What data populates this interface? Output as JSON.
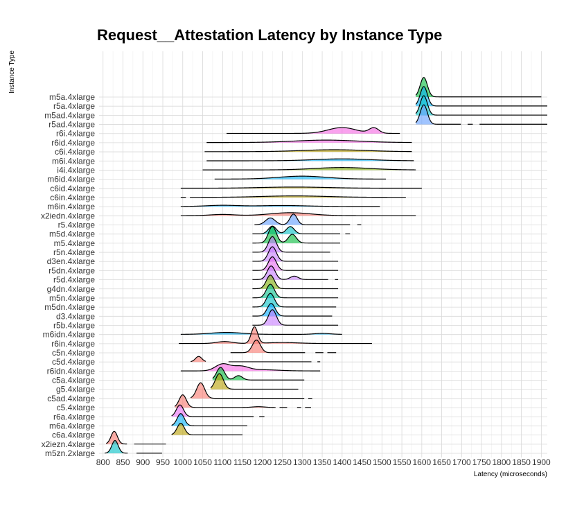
{
  "chart_data": {
    "type": "ridgeline",
    "title": "Request__Attestation Latency by Instance Type",
    "xlabel": "Latency (microseconds)",
    "ylabel": "Instance Type",
    "xlim": [
      790,
      1915
    ],
    "xticks": [
      800,
      850,
      900,
      950,
      1000,
      1050,
      1100,
      1150,
      1200,
      1250,
      1300,
      1350,
      1400,
      1450,
      1500,
      1550,
      1600,
      1650,
      1700,
      1750,
      1800,
      1850,
      1900
    ],
    "grid": true,
    "categories": [
      "m5zn.2xlarge",
      "x2iezn.4xlarge",
      "c6a.4xlarge",
      "m6a.4xlarge",
      "r6a.4xlarge",
      "c5.4xlarge",
      "c5ad.4xlarge",
      "g5.4xlarge",
      "c5a.4xlarge",
      "r6idn.4xlarge",
      "c5d.4xlarge",
      "c5n.4xlarge",
      "r6in.4xlarge",
      "m6idn.4xlarge",
      "r5b.4xlarge",
      "d3.4xlarge",
      "m5dn.4xlarge",
      "m5n.4xlarge",
      "g4dn.4xlarge",
      "r5d.4xlarge",
      "r5dn.4xlarge",
      "d3en.4xlarge",
      "r5n.4xlarge",
      "m5.4xlarge",
      "m5d.4xlarge",
      "r5.4xlarge",
      "x2iedn.4xlarge",
      "m6in.4xlarge",
      "c6in.4xlarge",
      "c6id.4xlarge",
      "m6id.4xlarge",
      "i4i.4xlarge",
      "m6i.4xlarge",
      "c6i.4xlarge",
      "r6id.4xlarge",
      "r6i.4xlarge",
      "r5ad.4xlarge",
      "m5ad.4xlarge",
      "r5a.4xlarge",
      "m5a.4xlarge"
    ],
    "series": [
      {
        "name": "m5zn.2xlarge",
        "color": "#00BFC4",
        "range": [
          804,
          948
        ],
        "peaks": [
          [
            830,
            1.3,
            8
          ]
        ],
        "gaps": [
          [
            862,
            884
          ]
        ]
      },
      {
        "name": "x2iezn.4xlarge",
        "color": "#F8766D",
        "range": [
          808,
          958
        ],
        "peaks": [
          [
            828,
            1.3,
            8
          ]
        ],
        "gaps": [
          [
            860,
            878
          ]
        ]
      },
      {
        "name": "c6a.4xlarge",
        "color": "#B79F00",
        "range": [
          972,
          1150
        ],
        "peaks": [
          [
            995,
            1.2,
            9
          ]
        ]
      },
      {
        "name": "m6a.4xlarge",
        "color": "#00B0F6",
        "range": [
          972,
          1162
        ],
        "peaks": [
          [
            995,
            1.25,
            9
          ]
        ]
      },
      {
        "name": "r6a.4xlarge",
        "color": "#E76BF3",
        "range": [
          972,
          1205
        ],
        "peaks": [
          [
            993,
            1.2,
            9
          ]
        ],
        "gaps": [
          [
            1178,
            1192
          ]
        ]
      },
      {
        "name": "c5.4xlarge",
        "color": "#F8766D",
        "range": [
          980,
          1322
        ],
        "peaks": [
          [
            1000,
            1.3,
            9
          ],
          [
            1190,
            0.08,
            15
          ]
        ],
        "gaps": [
          [
            1233,
            1243
          ],
          [
            1262,
            1287
          ],
          [
            1297,
            1307
          ]
        ]
      },
      {
        "name": "c5ad.4xlarge",
        "color": "#F8766D",
        "range": [
          1020,
          1325
        ],
        "peaks": [
          [
            1045,
            1.6,
            10
          ]
        ],
        "gaps": [
          [
            1305,
            1315
          ]
        ]
      },
      {
        "name": "g5.4xlarge",
        "color": "#B79F00",
        "range": [
          1070,
          1290
        ],
        "peaks": [
          [
            1092,
            1.6,
            10
          ]
        ]
      },
      {
        "name": "c5a.4xlarge",
        "color": "#00BA38",
        "range": [
          1075,
          1305
        ],
        "peaks": [
          [
            1095,
            1.3,
            10
          ],
          [
            1140,
            0.45,
            10
          ]
        ]
      },
      {
        "name": "r6idn.4xlarge",
        "color": "#F564E3",
        "range": [
          995,
          1345
        ],
        "peaks": [
          [
            1100,
            0.7,
            18
          ],
          [
            1145,
            0.45,
            20
          ],
          [
            1200,
            0.12,
            40
          ]
        ]
      },
      {
        "name": "c5d.4xlarge",
        "color": "#F8766D",
        "range": [
          1020,
          1345
        ],
        "peaks": [
          [
            1040,
            0.55,
            8
          ]
        ],
        "gaps": [
          [
            1058,
            1115
          ],
          [
            1323,
            1338
          ]
        ]
      },
      {
        "name": "c5n.4xlarge",
        "color": "#F8766D",
        "range": [
          1120,
          1385
        ],
        "peaks": [
          [
            1185,
            1.3,
            10
          ]
        ],
        "gaps": [
          [
            1307,
            1333
          ],
          [
            1353,
            1363
          ]
        ]
      },
      {
        "name": "r6in.4xlarge",
        "color": "#F8766D",
        "range": [
          990,
          1475
        ],
        "peaks": [
          [
            1180,
            1.7,
            8
          ],
          [
            1105,
            0.2,
            20
          ],
          [
            1250,
            0.1,
            40
          ]
        ]
      },
      {
        "name": "m6idn.4xlarge",
        "color": "#00B0F6",
        "range": [
          995,
          1400
        ],
        "peaks": [
          [
            1110,
            0.2,
            40
          ],
          [
            1350,
            0.1,
            20
          ]
        ]
      },
      {
        "name": "r5b.4xlarge",
        "color": "#C77CFF",
        "range": [
          1175,
          1390
        ],
        "peaks": [
          [
            1225,
            1.6,
            10
          ]
        ]
      },
      {
        "name": "d3.4xlarge",
        "color": "#00A9FF",
        "range": [
          1175,
          1375
        ],
        "peaks": [
          [
            1222,
            1.3,
            10
          ]
        ]
      },
      {
        "name": "m5dn.4xlarge",
        "color": "#00BFC4",
        "range": [
          1175,
          1385
        ],
        "peaks": [
          [
            1220,
            1.4,
            10
          ]
        ]
      },
      {
        "name": "m5n.4xlarge",
        "color": "#00C08B",
        "range": [
          1175,
          1390
        ],
        "peaks": [
          [
            1220,
            1.4,
            10
          ]
        ]
      },
      {
        "name": "g4dn.4xlarge",
        "color": "#7CAE00",
        "range": [
          1175,
          1390
        ],
        "peaks": [
          [
            1220,
            1.4,
            10
          ]
        ]
      },
      {
        "name": "r5d.4xlarge",
        "color": "#C77CFF",
        "range": [
          1175,
          1390
        ],
        "peaks": [
          [
            1222,
            1.4,
            10
          ],
          [
            1280,
            0.35,
            10
          ]
        ],
        "gaps": [
          [
            1365,
            1382
          ]
        ]
      },
      {
        "name": "r5dn.4xlarge",
        "color": "#E76BF3",
        "range": [
          1175,
          1390
        ],
        "peaks": [
          [
            1225,
            1.4,
            10
          ]
        ]
      },
      {
        "name": "d3en.4xlarge",
        "color": "#C77CFF",
        "range": [
          1175,
          1390
        ],
        "peaks": [
          [
            1225,
            1.5,
            10
          ]
        ]
      },
      {
        "name": "r5n.4xlarge",
        "color": "#C77CFF",
        "range": [
          1175,
          1370
        ],
        "peaks": [
          [
            1225,
            1.6,
            10
          ]
        ]
      },
      {
        "name": "m5.4xlarge",
        "color": "#00BA38",
        "range": [
          1175,
          1395
        ],
        "peaks": [
          [
            1225,
            1.7,
            10
          ],
          [
            1275,
            0.9,
            10
          ]
        ]
      },
      {
        "name": "m5d.4xlarge",
        "color": "#00BFC4",
        "range": [
          1175,
          1420
        ],
        "peaks": [
          [
            1225,
            0.8,
            10
          ],
          [
            1270,
            0.75,
            10
          ]
        ],
        "gaps": [
          [
            1395,
            1408
          ]
        ]
      },
      {
        "name": "r5.4xlarge",
        "color": "#619CFF",
        "range": [
          1180,
          1448
        ],
        "peaks": [
          [
            1220,
            0.7,
            12
          ],
          [
            1278,
            1.1,
            9
          ]
        ],
        "gaps": [
          [
            1420,
            1438
          ]
        ]
      },
      {
        "name": "x2iedn.4xlarge",
        "color": "#F8766D",
        "range": [
          995,
          1585
        ],
        "peaks": [
          [
            1100,
            0.12,
            30
          ],
          [
            1270,
            0.3,
            50
          ]
        ]
      },
      {
        "name": "m6in.4xlarge",
        "color": "#00A9FF",
        "range": [
          995,
          1495
        ],
        "peaks": [
          [
            1100,
            0.12,
            40
          ],
          [
            1250,
            0.1,
            60
          ]
        ]
      },
      {
        "name": "c6in.4xlarge",
        "color": "#B79F00",
        "range": [
          995,
          1560
        ],
        "peaks": [
          [
            1280,
            0.15,
            80
          ]
        ],
        "gaps": [
          [
            1008,
            1018
          ]
        ]
      },
      {
        "name": "c6id.4xlarge",
        "color": "#B79F00",
        "range": [
          995,
          1600
        ],
        "peaks": [
          [
            1280,
            0.12,
            80
          ]
        ]
      },
      {
        "name": "m6id.4xlarge",
        "color": "#00B0F6",
        "range": [
          1080,
          1510
        ],
        "peaks": [
          [
            1300,
            0.3,
            60
          ]
        ]
      },
      {
        "name": "i4i.4xlarge",
        "color": "#7CAE00",
        "range": [
          1050,
          1585
        ],
        "peaks": [
          [
            1400,
            0.25,
            70
          ]
        ]
      },
      {
        "name": "m6i.4xlarge",
        "color": "#00B0F6",
        "range": [
          1060,
          1580
        ],
        "peaks": [
          [
            1400,
            0.2,
            70
          ]
        ]
      },
      {
        "name": "c6i.4xlarge",
        "color": "#B79F00",
        "range": [
          1055,
          1575
        ],
        "peaks": [
          [
            1380,
            0.2,
            80
          ]
        ]
      },
      {
        "name": "r6id.4xlarge",
        "color": "#F564E3",
        "range": [
          1060,
          1575
        ],
        "peaks": [
          [
            1360,
            0.25,
            80
          ]
        ]
      },
      {
        "name": "r6i.4xlarge",
        "color": "#F564E3",
        "range": [
          1110,
          1545
        ],
        "peaks": [
          [
            1400,
            0.6,
            35
          ],
          [
            1480,
            0.55,
            12
          ]
        ]
      },
      {
        "name": "r5ad.4xlarge",
        "color": "#619CFF",
        "range": [
          1585,
          1915
        ],
        "peaks": [
          [
            1605,
            2.0,
            9
          ]
        ],
        "gaps": [
          [
            1698,
            1715
          ],
          [
            1728,
            1745
          ]
        ]
      },
      {
        "name": "m5ad.4xlarge",
        "color": "#00BFC4",
        "range": [
          1585,
          1915
        ],
        "peaks": [
          [
            1605,
            2.0,
            9
          ]
        ]
      },
      {
        "name": "r5a.4xlarge",
        "color": "#00B0F6",
        "range": [
          1585,
          1915
        ],
        "peaks": [
          [
            1605,
            2.0,
            9
          ]
        ]
      },
      {
        "name": "m5a.4xlarge",
        "color": "#00BA38",
        "range": [
          1585,
          1900
        ],
        "peaks": [
          [
            1605,
            2.0,
            9
          ]
        ]
      }
    ]
  }
}
